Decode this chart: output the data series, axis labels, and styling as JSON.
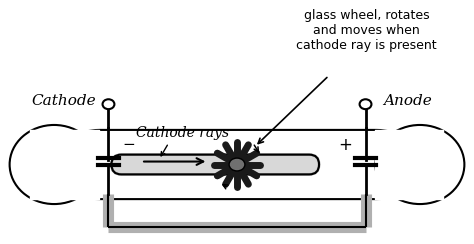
{
  "bg_color": "#ffffff",
  "line_color": "#000000",
  "gray_color": "#b0b0b0",
  "dark_gray": "#606060",
  "wheel_color": "#1a1a1a",
  "hub_color": "#707070",
  "text_cathode": "Cathode",
  "text_anode": "Anode",
  "text_cathode_rays": "Cathode rays",
  "text_annotation": "glass wheel, rotates\nand moves when\ncathode ray is present",
  "text_minus": "−",
  "text_plus": "+",
  "figsize": [
    4.74,
    2.44
  ],
  "dpi": 100
}
